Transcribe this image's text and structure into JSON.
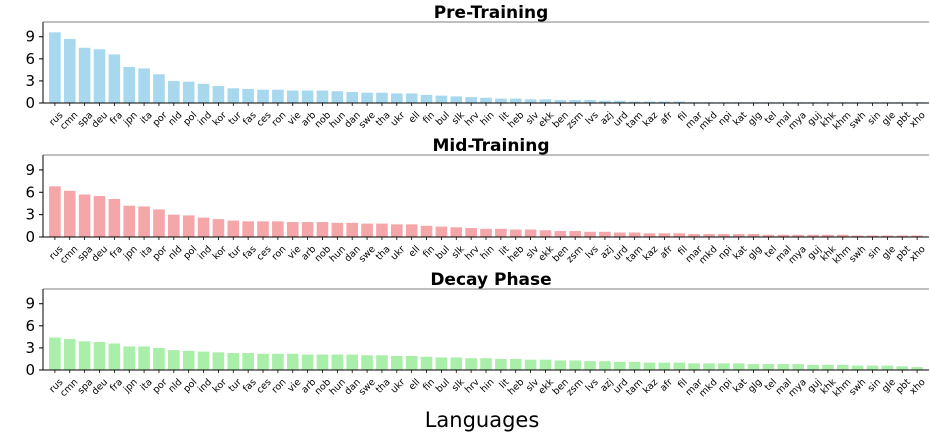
{
  "chart_data": {
    "type": "bar",
    "xlabel": "Languages",
    "categories": [
      "rus",
      "cmn",
      "spa",
      "deu",
      "fra",
      "jpn",
      "ita",
      "por",
      "nld",
      "pol",
      "ind",
      "kor",
      "tur",
      "fas",
      "ces",
      "ron",
      "vie",
      "arb",
      "nob",
      "hun",
      "dan",
      "swe",
      "tha",
      "ukr",
      "ell",
      "fin",
      "bul",
      "slk",
      "hrv",
      "hin",
      "lit",
      "heb",
      "slv",
      "ekk",
      "ben",
      "zsm",
      "lvs",
      "azj",
      "urd",
      "tam",
      "kaz",
      "afr",
      "fil",
      "mar",
      "mkd",
      "npi",
      "kat",
      "glg",
      "tel",
      "mal",
      "mya",
      "guj",
      "khk",
      "khm",
      "swh",
      "sin",
      "gle",
      "pbt",
      "xho"
    ],
    "ylim": [
      0,
      0.11
    ],
    "yticks": [
      0,
      0.03,
      0.06,
      0.09
    ],
    "ytick_labels": [
      "0",
      "3",
      "6",
      "9"
    ],
    "panels": [
      {
        "title": "Pre-Training",
        "color": "#a8d8ee",
        "values": [
          0.096,
          0.087,
          0.075,
          0.073,
          0.066,
          0.049,
          0.047,
          0.039,
          0.03,
          0.029,
          0.026,
          0.023,
          0.02,
          0.019,
          0.018,
          0.018,
          0.017,
          0.017,
          0.017,
          0.016,
          0.015,
          0.014,
          0.014,
          0.013,
          0.013,
          0.011,
          0.01,
          0.009,
          0.008,
          0.007,
          0.006,
          0.006,
          0.005,
          0.005,
          0.004,
          0.004,
          0.004,
          0.003,
          0.003,
          0.002,
          0.002,
          0.002,
          0.002,
          0.001,
          0.001,
          0.001,
          0.001,
          0.001,
          0.001,
          0.001,
          0.001,
          0.001,
          0.001,
          0.001,
          0.001,
          0.001,
          0.001,
          0.001,
          0.001
        ]
      },
      {
        "title": "Mid-Training",
        "color": "#f4a6a8",
        "values": [
          0.068,
          0.062,
          0.057,
          0.055,
          0.051,
          0.042,
          0.041,
          0.037,
          0.03,
          0.029,
          0.026,
          0.024,
          0.022,
          0.021,
          0.021,
          0.021,
          0.02,
          0.02,
          0.02,
          0.019,
          0.019,
          0.018,
          0.018,
          0.017,
          0.017,
          0.015,
          0.014,
          0.013,
          0.012,
          0.011,
          0.011,
          0.01,
          0.01,
          0.009,
          0.008,
          0.008,
          0.007,
          0.007,
          0.006,
          0.006,
          0.005,
          0.005,
          0.005,
          0.004,
          0.004,
          0.004,
          0.004,
          0.004,
          0.003,
          0.003,
          0.003,
          0.003,
          0.003,
          0.003,
          0.002,
          0.002,
          0.002,
          0.002,
          0.002
        ]
      },
      {
        "title": "Decay Phase",
        "color": "#a9eea9",
        "values": [
          0.044,
          0.042,
          0.039,
          0.038,
          0.036,
          0.032,
          0.032,
          0.03,
          0.027,
          0.026,
          0.025,
          0.024,
          0.023,
          0.023,
          0.022,
          0.022,
          0.022,
          0.021,
          0.021,
          0.021,
          0.021,
          0.02,
          0.02,
          0.019,
          0.019,
          0.018,
          0.017,
          0.017,
          0.016,
          0.016,
          0.015,
          0.015,
          0.014,
          0.014,
          0.013,
          0.013,
          0.012,
          0.012,
          0.011,
          0.011,
          0.01,
          0.01,
          0.01,
          0.009,
          0.009,
          0.009,
          0.009,
          0.008,
          0.008,
          0.008,
          0.008,
          0.007,
          0.007,
          0.007,
          0.006,
          0.006,
          0.006,
          0.005,
          0.004
        ]
      }
    ]
  }
}
